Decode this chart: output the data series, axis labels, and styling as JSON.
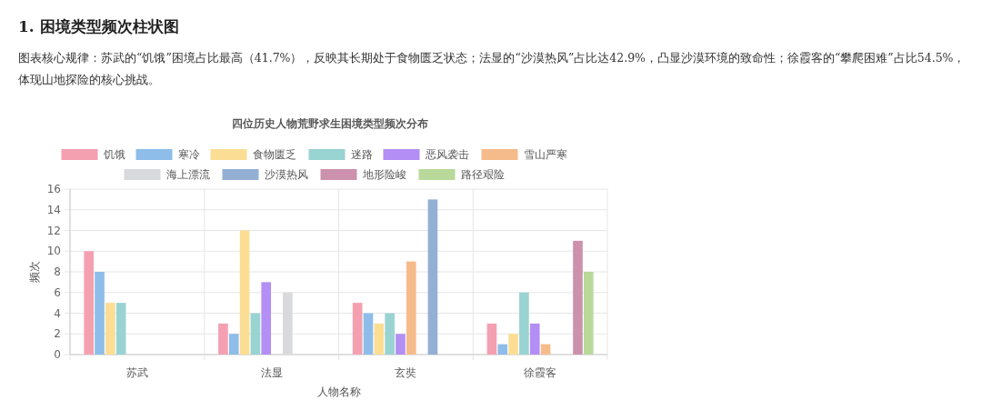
{
  "chart_data": {
    "type": "bar",
    "title": "四位历史人物荒野求生困境类型频次分布",
    "annotations": [
      "1. 困境类型频次柱状图",
      "图表核心规律：苏武的“饥饿”困境占比最高（41.7%），反映其长期处于食物匮乏状态；法显的“沙漠热风”占比达42.9%，凸显沙漠环境的致命性；徐霞客的“攀爬困难”占比54.5%，体现山地探险的核心挑战。"
    ],
    "xlabel": "人物名称",
    "ylabel": "频次",
    "categories": [
      "苏武",
      "法显",
      "玄奘",
      "徐霞客"
    ],
    "series": [
      {
        "name": "饥饿",
        "color": "#f4a0b1",
        "values": [
          10,
          3,
          5,
          3
        ]
      },
      {
        "name": "寒冷",
        "color": "#8ebde9",
        "values": [
          8,
          2,
          4,
          1
        ]
      },
      {
        "name": "食物匮乏",
        "color": "#fbdd94",
        "values": [
          5,
          12,
          3,
          2
        ]
      },
      {
        "name": "迷路",
        "color": "#99d3d2",
        "values": [
          5,
          4,
          4,
          6
        ]
      },
      {
        "name": "恶风袭击",
        "color": "#b38ef5",
        "values": [
          null,
          7,
          2,
          3
        ]
      },
      {
        "name": "雪山严寒",
        "color": "#f6bb8a",
        "values": [
          null,
          null,
          9,
          1
        ]
      },
      {
        "name": "海上漂流",
        "color": "#d8d9dc",
        "values": [
          null,
          6,
          null,
          null
        ]
      },
      {
        "name": "沙漠热风",
        "color": "#93afd4",
        "values": [
          null,
          null,
          15,
          null
        ]
      },
      {
        "name": "地形险峻",
        "color": "#cc91ad",
        "values": [
          null,
          null,
          null,
          11
        ]
      },
      {
        "name": "路径艰险",
        "color": "#b9d99a",
        "values": [
          null,
          null,
          null,
          8
        ]
      }
    ],
    "ylim": [
      0,
      16
    ],
    "yticks": [
      0,
      2,
      4,
      6,
      8,
      10,
      12,
      14,
      16
    ],
    "grid": true,
    "legend": "top"
  }
}
